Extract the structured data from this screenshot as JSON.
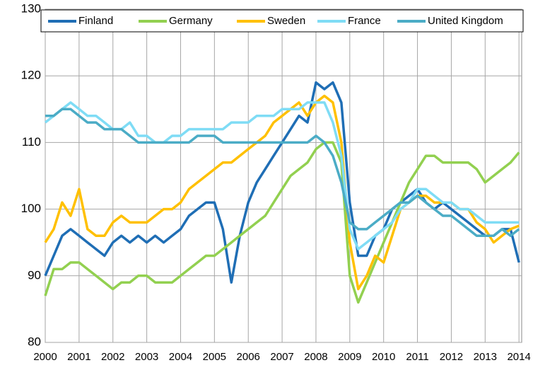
{
  "chart_data": {
    "type": "line",
    "x": [
      2000,
      2000.25,
      2000.5,
      2000.75,
      2001,
      2001.25,
      2001.5,
      2001.75,
      2002,
      2002.25,
      2002.5,
      2002.75,
      2003,
      2003.25,
      2003.5,
      2003.75,
      2004,
      2004.25,
      2004.5,
      2004.75,
      2005,
      2005.25,
      2005.5,
      2005.75,
      2006,
      2006.25,
      2006.5,
      2006.75,
      2007,
      2007.25,
      2007.5,
      2007.75,
      2008,
      2008.25,
      2008.5,
      2008.75,
      2009,
      2009.25,
      2009.5,
      2009.75,
      2010,
      2010.25,
      2010.5,
      2010.75,
      2011,
      2011.25,
      2011.5,
      2011.75,
      2012,
      2012.25,
      2012.5,
      2012.75,
      2013,
      2013.25,
      2013.5,
      2013.75,
      2014
    ],
    "series": [
      {
        "name": "Finland",
        "color": "#1f6eb5",
        "values": [
          90,
          93,
          96,
          97,
          96,
          95,
          94,
          93,
          95,
          96,
          95,
          96,
          95,
          96,
          95,
          96,
          97,
          99,
          100,
          101,
          101,
          97,
          89,
          96,
          101,
          104,
          106,
          108,
          110,
          112,
          114,
          113,
          119,
          118,
          119,
          116,
          101,
          93,
          93,
          96,
          97,
          100,
          101,
          102,
          103,
          101,
          100,
          101,
          100,
          99,
          98,
          97,
          96,
          96,
          97,
          97,
          92
        ]
      },
      {
        "name": "Germany",
        "color": "#92d050",
        "values": [
          87,
          91,
          91,
          92,
          92,
          91,
          90,
          89,
          88,
          89,
          89,
          90,
          90,
          89,
          89,
          89,
          90,
          91,
          92,
          93,
          93,
          94,
          95,
          96,
          97,
          98,
          99,
          101,
          103,
          105,
          106,
          107,
          109,
          110,
          110,
          107,
          90,
          86,
          89,
          92,
          95,
          98,
          101,
          104,
          106,
          108,
          108,
          107,
          107,
          107,
          107,
          106,
          104,
          105,
          106,
          107,
          108.5
        ]
      },
      {
        "name": "Sweden",
        "color": "#ffc000",
        "values": [
          95,
          97,
          101,
          99,
          103,
          97,
          96,
          96,
          98,
          99,
          98,
          98,
          98,
          99,
          100,
          100,
          101,
          103,
          104,
          105,
          106,
          107,
          107,
          108,
          109,
          110,
          111,
          113,
          114,
          115,
          116,
          114,
          116,
          117,
          116,
          110,
          95,
          88,
          90,
          93,
          92,
          96,
          100,
          101,
          102,
          102,
          101,
          101,
          101,
          100,
          100,
          98,
          97,
          95,
          96,
          97,
          97.5
        ]
      },
      {
        "name": "France",
        "color": "#7fdcf5",
        "values": [
          113,
          114,
          115,
          116,
          115,
          114,
          114,
          113,
          112,
          112,
          113,
          111,
          111,
          110,
          110,
          111,
          111,
          112,
          112,
          112,
          112,
          112,
          113,
          113,
          113,
          114,
          114,
          114,
          115,
          115,
          115,
          116,
          116,
          116,
          113,
          108,
          97,
          94,
          95,
          96,
          97,
          98,
          100,
          101,
          103,
          103,
          102,
          101,
          101,
          100,
          100,
          99,
          98,
          98,
          98,
          98,
          98
        ]
      },
      {
        "name": "United Kingdom",
        "color": "#4bacc6",
        "values": [
          114,
          114,
          115,
          115,
          114,
          113,
          113,
          112,
          112,
          112,
          111,
          110,
          110,
          110,
          110,
          110,
          110,
          110,
          111,
          111,
          111,
          110,
          110,
          110,
          110,
          110,
          110,
          110,
          110,
          110,
          110,
          110,
          111,
          110,
          108,
          104,
          98,
          97,
          97,
          98,
          99,
          100,
          101,
          101,
          102,
          101,
          100,
          99,
          99,
          98,
          97,
          96,
          96,
          96,
          97,
          96,
          97
        ]
      }
    ],
    "xlim": [
      2000,
      2014.08
    ],
    "xticks": [
      2000,
      2001,
      2002,
      2003,
      2004,
      2005,
      2006,
      2007,
      2008,
      2009,
      2010,
      2011,
      2012,
      2013,
      2014
    ],
    "ylim": [
      80,
      130
    ],
    "yticks": [
      80,
      90,
      100,
      110,
      120,
      130
    ],
    "grid": true,
    "legend": "top"
  }
}
